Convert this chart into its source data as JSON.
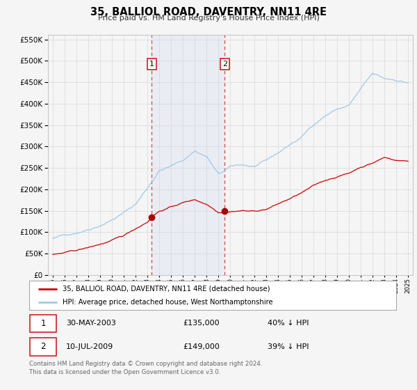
{
  "title": "35, BALLIOL ROAD, DAVENTRY, NN11 4RE",
  "subtitle": "Price paid vs. HM Land Registry's House Price Index (HPI)",
  "legend_line1": "35, BALLIOL ROAD, DAVENTRY, NN11 4RE (detached house)",
  "legend_line2": "HPI: Average price, detached house, West Northamptonshire",
  "transaction1_date": "30-MAY-2003",
  "transaction1_price": "£135,000",
  "transaction1_hpi": "40% ↓ HPI",
  "transaction1_year": 2003.37,
  "transaction1_value": 135000,
  "transaction2_date": "10-JUL-2009",
  "transaction2_price": "£149,000",
  "transaction2_hpi": "39% ↓ HPI",
  "transaction2_year": 2009.53,
  "transaction2_value": 149000,
  "hpi_color": "#a0c8e8",
  "price_color": "#cc0000",
  "marker_color": "#aa0000",
  "vline_color": "#dd4444",
  "shade_color": "#ddeeff",
  "background_color": "#f5f5f5",
  "plot_bg_color": "#f5f5f5",
  "grid_color": "#dddddd",
  "ylim": [
    0,
    560000
  ],
  "yticks": [
    0,
    50000,
    100000,
    150000,
    200000,
    250000,
    300000,
    350000,
    400000,
    450000,
    500000,
    550000
  ],
  "footer": "Contains HM Land Registry data © Crown copyright and database right 2024.\nThis data is licensed under the Open Government Licence v3.0."
}
